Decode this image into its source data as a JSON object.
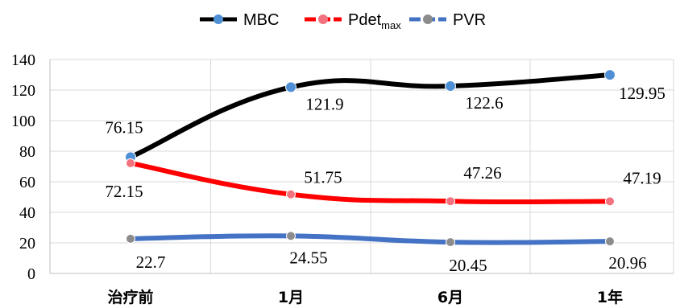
{
  "chart_data": {
    "type": "line",
    "categories": [
      "治疗前",
      "1月",
      "6月",
      "1年"
    ],
    "ylim": [
      0,
      140
    ],
    "yticks": [
      0,
      20,
      40,
      60,
      80,
      100,
      120,
      140
    ],
    "grid": true,
    "legend_position": "top-center",
    "series": [
      {
        "name": "MBC",
        "values": [
          76.15,
          121.9,
          122.6,
          129.95
        ],
        "labels": [
          "76.15",
          "121.9",
          "122.6",
          "129.95"
        ],
        "line_color": "#000000",
        "marker_color": "#4E8FD6"
      },
      {
        "name": "Pdet",
        "name_subscript": "max",
        "values": [
          72.15,
          51.75,
          47.26,
          47.19
        ],
        "labels": [
          "72.15",
          "51.75",
          "47.26",
          "47.19"
        ],
        "line_color": "#FF0000",
        "marker_color": "#F2737F"
      },
      {
        "name": "PVR",
        "values": [
          22.7,
          24.55,
          20.45,
          20.96
        ],
        "labels": [
          "22.7",
          "24.55",
          "20.45",
          "20.96"
        ],
        "line_color": "#4472C4",
        "marker_color": "#8C8C8C"
      }
    ]
  }
}
